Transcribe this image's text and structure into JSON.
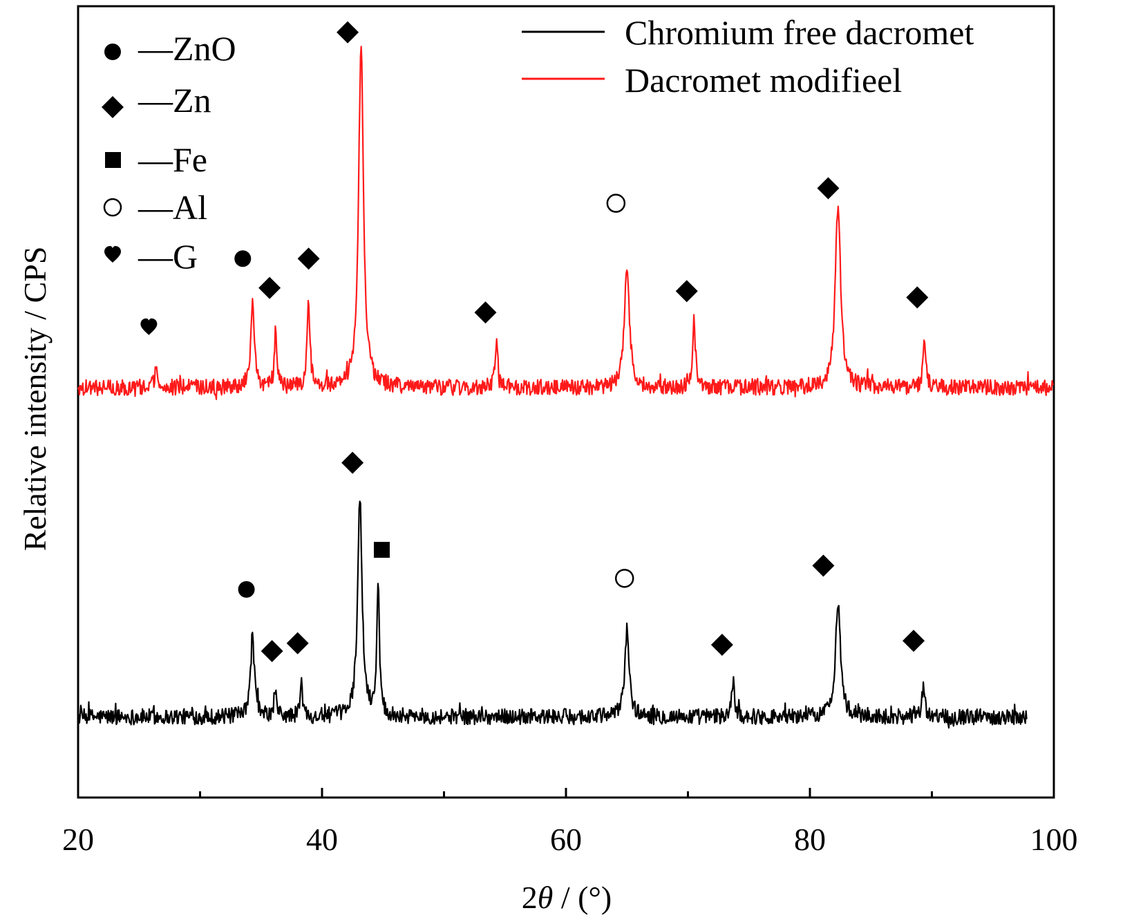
{
  "chart_data": {
    "type": "line",
    "title": "",
    "xlabel": "2θ / (°)",
    "xlabel_parts": [
      "2",
      "θ",
      " / (°)"
    ],
    "ylabel": "Relative intensity / CPS",
    "xlim": [
      20,
      100
    ],
    "ylim": [
      0,
      100
    ],
    "y_ticks_shown": false,
    "x_major_ticks": [
      20,
      40,
      60,
      80,
      100
    ],
    "x_minor_ticks": [
      30,
      50,
      70,
      90
    ],
    "x_tick_labels": [
      "20",
      "40",
      "60",
      "80",
      "100"
    ],
    "grid": false,
    "legend": {
      "placement": "top-right",
      "entries": [
        {
          "label": "Chromium free dacromet",
          "color": "#000000"
        },
        {
          "label": "Dacromet modifieel",
          "color": "#ff1a1a"
        }
      ]
    },
    "phase_key": {
      "placement": "top-left",
      "entries": [
        {
          "symbol": "circle-filled",
          "label": "—ZnO"
        },
        {
          "symbol": "diamond-filled",
          "label": "—Zn"
        },
        {
          "symbol": "square-filled",
          "label": "—Fe"
        },
        {
          "symbol": "circle-open",
          "label": "—Al"
        },
        {
          "symbol": "heart-filled",
          "label": "—G"
        }
      ]
    },
    "series": [
      {
        "name": "Chromium free dacromet",
        "color": "#000000",
        "x_range": [
          20,
          97.8
        ],
        "baseline": 10.2,
        "noise": 1.0,
        "peaks": [
          {
            "x": 34.3,
            "height": 10.5,
            "width": 0.18
          },
          {
            "x": 36.2,
            "height": 3.0,
            "width": 0.12
          },
          {
            "x": 38.3,
            "height": 4.2,
            "width": 0.12
          },
          {
            "x": 43.1,
            "height": 27.5,
            "width": 0.22
          },
          {
            "x": 44.6,
            "height": 16.0,
            "width": 0.14
          },
          {
            "x": 65.0,
            "height": 11.0,
            "width": 0.22
          },
          {
            "x": 73.7,
            "height": 4.5,
            "width": 0.14
          },
          {
            "x": 82.3,
            "height": 14.5,
            "width": 0.25
          },
          {
            "x": 89.3,
            "height": 3.5,
            "width": 0.14
          }
        ]
      },
      {
        "name": "Dacromet modifieel",
        "color": "#ff1a1a",
        "x_range": [
          20,
          100
        ],
        "baseline": 51.8,
        "noise": 1.0,
        "peaks": [
          {
            "x": 26.4,
            "height": 2.5,
            "width": 0.15
          },
          {
            "x": 34.3,
            "height": 10.2,
            "width": 0.18
          },
          {
            "x": 36.2,
            "height": 7.3,
            "width": 0.12
          },
          {
            "x": 38.9,
            "height": 10.6,
            "width": 0.14
          },
          {
            "x": 43.2,
            "height": 43.2,
            "width": 0.24
          },
          {
            "x": 54.3,
            "height": 5.4,
            "width": 0.14
          },
          {
            "x": 65.0,
            "height": 15.4,
            "width": 0.24
          },
          {
            "x": 70.5,
            "height": 8.4,
            "width": 0.14
          },
          {
            "x": 82.3,
            "height": 23.2,
            "width": 0.26
          },
          {
            "x": 89.4,
            "height": 6.3,
            "width": 0.14
          }
        ]
      }
    ],
    "annotations": [
      {
        "symbol": "heart-filled",
        "x": 25.8,
        "y": 59.5
      },
      {
        "symbol": "circle-filled",
        "x": 33.5,
        "y": 68.1
      },
      {
        "symbol": "diamond-filled",
        "x": 35.7,
        "y": 64.4
      },
      {
        "symbol": "diamond-filled",
        "x": 38.9,
        "y": 68.1
      },
      {
        "symbol": "diamond-filled",
        "x": 42.1,
        "y": 96.7
      },
      {
        "symbol": "diamond-filled",
        "x": 53.4,
        "y": 61.3
      },
      {
        "symbol": "circle-open",
        "x": 64.1,
        "y": 75.1
      },
      {
        "symbol": "diamond-filled",
        "x": 69.9,
        "y": 64.0
      },
      {
        "symbol": "diamond-filled",
        "x": 81.5,
        "y": 77.0
      },
      {
        "symbol": "diamond-filled",
        "x": 88.8,
        "y": 63.2
      },
      {
        "symbol": "diamond-filled",
        "x": 42.5,
        "y": 42.3
      },
      {
        "symbol": "square-filled",
        "x": 44.9,
        "y": 31.3
      },
      {
        "symbol": "circle-filled",
        "x": 33.8,
        "y": 26.3
      },
      {
        "symbol": "diamond-filled",
        "x": 35.9,
        "y": 18.5
      },
      {
        "symbol": "diamond-filled",
        "x": 38.0,
        "y": 19.5
      },
      {
        "symbol": "circle-open",
        "x": 64.8,
        "y": 27.7
      },
      {
        "symbol": "diamond-filled",
        "x": 72.8,
        "y": 19.3
      },
      {
        "symbol": "diamond-filled",
        "x": 81.1,
        "y": 29.3
      },
      {
        "symbol": "diamond-filled",
        "x": 88.5,
        "y": 19.8
      }
    ]
  }
}
